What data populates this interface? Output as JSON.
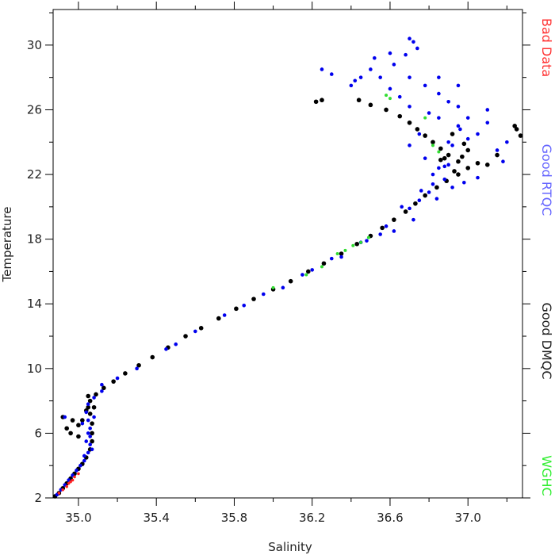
{
  "chart_data": {
    "type": "scatter",
    "title": "",
    "xlabel": "Salinity",
    "ylabel": "Temperature",
    "xlim": [
      34.87,
      37.28
    ],
    "ylim": [
      2,
      32.2
    ],
    "x_ticks": [
      35.0,
      35.4,
      35.8,
      36.2,
      36.6,
      37.0
    ],
    "x_tick_labels": [
      "35.0",
      "35.4",
      "35.8",
      "36.2",
      "36.6",
      "37.0"
    ],
    "y_ticks": [
      2,
      6,
      10,
      14,
      18,
      22,
      26,
      30
    ],
    "y_tick_labels": [
      "2",
      "6",
      "10",
      "14",
      "18",
      "22",
      "26",
      "30"
    ],
    "grid": false,
    "legend_placement": "right-vertical",
    "series": [
      {
        "name": "Good DMQC",
        "color": "#000000",
        "marker_radius": 2.8,
        "points": [
          [
            34.88,
            2.1
          ],
          [
            34.9,
            2.3
          ],
          [
            34.92,
            2.6
          ],
          [
            34.94,
            2.9
          ],
          [
            34.96,
            3.2
          ],
          [
            34.98,
            3.5
          ],
          [
            35.0,
            3.8
          ],
          [
            35.02,
            4.1
          ],
          [
            35.04,
            4.5
          ],
          [
            35.06,
            5.0
          ],
          [
            35.07,
            5.5
          ],
          [
            35.07,
            6.0
          ],
          [
            35.07,
            6.6
          ],
          [
            35.06,
            7.2
          ],
          [
            35.05,
            7.6
          ],
          [
            35.06,
            8.0
          ],
          [
            35.09,
            8.4
          ],
          [
            35.13,
            8.8
          ],
          [
            35.18,
            9.2
          ],
          [
            35.24,
            9.7
          ],
          [
            35.31,
            10.2
          ],
          [
            35.38,
            10.7
          ],
          [
            35.46,
            11.3
          ],
          [
            35.55,
            12.0
          ],
          [
            35.63,
            12.5
          ],
          [
            35.72,
            13.1
          ],
          [
            35.81,
            13.7
          ],
          [
            35.9,
            14.3
          ],
          [
            36.0,
            14.9
          ],
          [
            36.09,
            15.4
          ],
          [
            36.18,
            16.0
          ],
          [
            36.26,
            16.5
          ],
          [
            36.35,
            17.1
          ],
          [
            36.43,
            17.7
          ],
          [
            36.5,
            18.2
          ],
          [
            36.56,
            18.7
          ],
          [
            36.62,
            19.2
          ],
          [
            36.68,
            19.7
          ],
          [
            36.73,
            20.2
          ],
          [
            36.78,
            20.7
          ],
          [
            36.84,
            21.2
          ],
          [
            36.89,
            21.6
          ],
          [
            36.95,
            22.0
          ],
          [
            37.0,
            22.4
          ],
          [
            37.05,
            22.7
          ],
          [
            37.1,
            22.6
          ],
          [
            36.95,
            22.8
          ],
          [
            36.9,
            23.2
          ],
          [
            36.86,
            23.6
          ],
          [
            36.82,
            24.0
          ],
          [
            36.78,
            24.4
          ],
          [
            36.74,
            24.8
          ],
          [
            36.7,
            25.2
          ],
          [
            36.65,
            25.6
          ],
          [
            36.58,
            26.0
          ],
          [
            36.5,
            26.3
          ],
          [
            36.44,
            26.6
          ],
          [
            36.25,
            26.6
          ],
          [
            36.22,
            26.5
          ],
          [
            36.92,
            24.5
          ],
          [
            37.0,
            23.5
          ],
          [
            37.15,
            23.2
          ],
          [
            37.25,
            24.8
          ],
          [
            37.27,
            24.4
          ],
          [
            37.24,
            25.0
          ],
          [
            36.88,
            23.0
          ],
          [
            36.98,
            23.9
          ],
          [
            36.93,
            22.2
          ],
          [
            36.86,
            22.9
          ],
          [
            36.97,
            23.1
          ],
          [
            34.92,
            7.0
          ],
          [
            34.97,
            6.8
          ],
          [
            35.0,
            6.5
          ],
          [
            34.94,
            6.3
          ],
          [
            34.96,
            6.0
          ],
          [
            35.0,
            5.8
          ],
          [
            35.02,
            6.8
          ],
          [
            35.08,
            7.6
          ],
          [
            35.05,
            8.3
          ],
          [
            35.04,
            7.4
          ]
        ]
      },
      {
        "name": "Good RTQC",
        "color": "#0000ee",
        "marker_radius": 2.3,
        "points": [
          [
            34.89,
            2.2
          ],
          [
            34.91,
            2.5
          ],
          [
            34.93,
            2.8
          ],
          [
            34.95,
            3.1
          ],
          [
            34.97,
            3.4
          ],
          [
            34.99,
            3.7
          ],
          [
            35.01,
            4.0
          ],
          [
            35.03,
            4.3
          ],
          [
            35.05,
            4.8
          ],
          [
            35.06,
            5.3
          ],
          [
            35.06,
            5.8
          ],
          [
            35.06,
            6.3
          ],
          [
            35.05,
            6.8
          ],
          [
            35.04,
            7.3
          ],
          [
            35.05,
            7.8
          ],
          [
            35.08,
            8.2
          ],
          [
            35.12,
            8.6
          ],
          [
            35.2,
            9.4
          ],
          [
            35.3,
            10.0
          ],
          [
            35.45,
            11.2
          ],
          [
            35.6,
            12.3
          ],
          [
            35.75,
            13.3
          ],
          [
            35.95,
            14.6
          ],
          [
            36.15,
            15.8
          ],
          [
            36.3,
            16.8
          ],
          [
            36.45,
            17.8
          ],
          [
            36.58,
            18.8
          ],
          [
            36.7,
            19.9
          ],
          [
            36.8,
            20.9
          ],
          [
            36.88,
            21.7
          ],
          [
            36.85,
            22.4
          ],
          [
            36.9,
            24.0
          ],
          [
            36.85,
            25.5
          ],
          [
            36.9,
            26.5
          ],
          [
            36.95,
            26.2
          ],
          [
            36.6,
            27.3
          ],
          [
            36.55,
            28.0
          ],
          [
            36.62,
            28.8
          ],
          [
            36.68,
            29.4
          ],
          [
            36.72,
            30.2
          ],
          [
            36.7,
            30.4
          ],
          [
            36.74,
            29.8
          ],
          [
            36.45,
            28.0
          ],
          [
            36.3,
            28.2
          ],
          [
            36.25,
            28.5
          ],
          [
            36.4,
            27.5
          ],
          [
            36.65,
            26.8
          ],
          [
            36.78,
            27.5
          ],
          [
            36.85,
            27.0
          ],
          [
            37.1,
            26.0
          ],
          [
            37.0,
            25.5
          ],
          [
            37.2,
            24.0
          ],
          [
            37.15,
            23.5
          ],
          [
            37.05,
            24.5
          ],
          [
            36.75,
            24.5
          ],
          [
            36.7,
            23.8
          ],
          [
            36.78,
            23.0
          ],
          [
            36.82,
            22.0
          ],
          [
            36.98,
            21.5
          ],
          [
            37.05,
            21.8
          ],
          [
            36.7,
            26.2
          ],
          [
            36.8,
            25.8
          ],
          [
            36.95,
            25.0
          ],
          [
            37.0,
            24.2
          ],
          [
            36.92,
            23.8
          ],
          [
            36.88,
            22.5
          ],
          [
            36.76,
            21.0
          ],
          [
            36.66,
            20.0
          ],
          [
            36.5,
            28.5
          ],
          [
            36.42,
            27.8
          ],
          [
            36.6,
            29.5
          ],
          [
            36.52,
            29.2
          ],
          [
            36.85,
            28.0
          ],
          [
            36.95,
            27.5
          ],
          [
            37.1,
            25.2
          ],
          [
            37.18,
            22.8
          ],
          [
            36.92,
            21.2
          ],
          [
            36.84,
            20.5
          ],
          [
            36.72,
            19.2
          ],
          [
            36.62,
            18.5
          ],
          [
            36.48,
            17.9
          ],
          [
            35.05,
            6.0
          ],
          [
            35.04,
            5.5
          ],
          [
            35.07,
            5.0
          ],
          [
            35.03,
            4.6
          ],
          [
            35.08,
            7.0
          ],
          [
            35.02,
            6.6
          ],
          [
            34.93,
            7.0
          ],
          [
            35.12,
            9.0
          ],
          [
            35.5,
            11.5
          ],
          [
            35.85,
            13.9
          ],
          [
            36.05,
            15.0
          ],
          [
            36.2,
            16.1
          ],
          [
            36.35,
            16.9
          ],
          [
            36.55,
            18.3
          ],
          [
            36.75,
            20.4
          ],
          [
            36.82,
            21.4
          ],
          [
            36.9,
            22.6
          ],
          [
            36.96,
            24.8
          ],
          [
            36.7,
            28.0
          ]
        ]
      },
      {
        "name": "WGHC",
        "color": "#33dd33",
        "marker_radius": 2.0,
        "points": [
          [
            36.33,
            17.1
          ],
          [
            36.37,
            17.3
          ],
          [
            36.41,
            17.6
          ],
          [
            36.45,
            17.8
          ],
          [
            36.49,
            18.1
          ],
          [
            36.58,
            26.9
          ],
          [
            36.6,
            26.7
          ],
          [
            36.78,
            25.5
          ],
          [
            36.82,
            23.8
          ],
          [
            36.85,
            23.4
          ],
          [
            36.0,
            15.0
          ],
          [
            36.17,
            15.8
          ],
          [
            36.25,
            16.3
          ]
        ]
      },
      {
        "name": "Bad Data",
        "color": "#ff2222",
        "marker_radius": 1.8,
        "points": [
          [
            34.9,
            2.3
          ],
          [
            34.92,
            2.5
          ],
          [
            34.94,
            2.7
          ],
          [
            34.96,
            3.0
          ],
          [
            34.98,
            3.3
          ],
          [
            35.0,
            3.5
          ],
          [
            34.95,
            2.9
          ],
          [
            34.97,
            3.1
          ]
        ]
      }
    ]
  },
  "legend": {
    "items": [
      {
        "label": "Bad Data",
        "color": "#ff3333"
      },
      {
        "label": "Good RTQC",
        "color": "#6666ff"
      },
      {
        "label": "Good DMQC",
        "color": "#222222"
      },
      {
        "label": "WGHC",
        "color": "#33ee33"
      }
    ]
  }
}
